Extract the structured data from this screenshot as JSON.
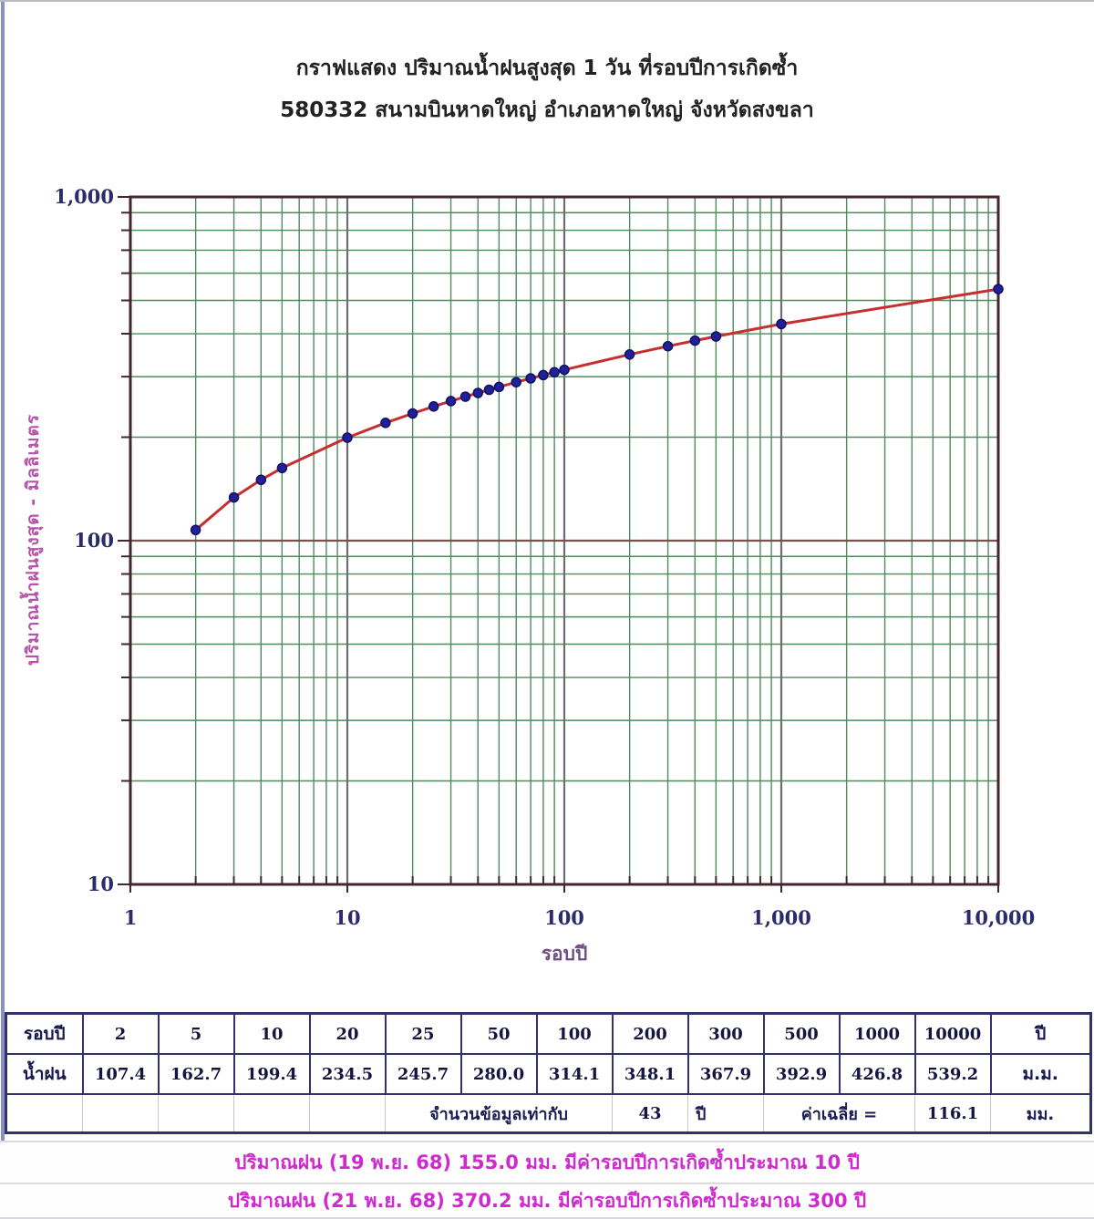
{
  "title": {
    "line1": "กราฟแสดง ปริมาณน้ำฝนสูงสุด 1 วัน ที่รอบปีการเกิดซ้ำ",
    "line2": "580332 สนามบินหาดใหญ่ อำเภอหาดใหญ่ จังหวัดสงขลา"
  },
  "chart_data": {
    "type": "line",
    "title": "กราฟแสดง ปริมาณน้ำฝนสูงสุด 1 วัน ที่รอบปีการเกิดซ้ำ",
    "subtitle": "580332 สนามบินหาดใหญ่ อำเภอหาดใหญ่ จังหวัดสงขลา",
    "xlabel": "รอบปี",
    "ylabel": "ปริมาณน้ำฝนสูงสุด - มิลลิเมตร",
    "x_scale": "log",
    "y_scale": "log",
    "xlim": [
      1,
      10000
    ],
    "ylim": [
      10,
      1000
    ],
    "grid": "log-log graph paper, minor lines green, major decade lines gray",
    "legend": "none",
    "x_ticks": [
      {
        "v": 1,
        "label": "1"
      },
      {
        "v": 10,
        "label": "10"
      },
      {
        "v": 100,
        "label": "100"
      },
      {
        "v": 1000,
        "label": "1,000"
      },
      {
        "v": 10000,
        "label": "10,000"
      }
    ],
    "y_ticks": [
      {
        "v": 10,
        "label": "10"
      },
      {
        "v": 100,
        "label": "100"
      },
      {
        "v": 1000,
        "label": "1,000"
      }
    ],
    "series": [
      {
        "name": "rainfall-frequency-curve",
        "line_color": "#c52f2f",
        "marker_color": "#20209a",
        "points": [
          [
            2,
            107.4
          ],
          [
            3,
            133.6
          ],
          [
            4,
            150.3
          ],
          [
            5,
            162.7
          ],
          [
            10,
            199.4
          ],
          [
            15,
            220.1
          ],
          [
            20,
            234.5
          ],
          [
            25,
            245.7
          ],
          [
            30,
            254.8
          ],
          [
            35,
            262.4
          ],
          [
            40,
            269.0
          ],
          [
            45,
            274.8
          ],
          [
            50,
            280.0
          ],
          [
            60,
            289.0
          ],
          [
            70,
            296.6
          ],
          [
            80,
            303.2
          ],
          [
            90,
            309.0
          ],
          [
            100,
            314.1
          ],
          [
            200,
            348.1
          ],
          [
            300,
            367.9
          ],
          [
            400,
            382.0
          ],
          [
            500,
            392.9
          ],
          [
            1000,
            426.8
          ],
          [
            10000,
            539.2
          ]
        ]
      }
    ]
  },
  "table": {
    "row1_header": "รอบปี",
    "row2_header": "น้ำฝน",
    "periods": [
      "2",
      "5",
      "10",
      "20",
      "25",
      "50",
      "100",
      "200",
      "300",
      "500",
      "1000",
      "10000"
    ],
    "period_unit": "ปี",
    "rainfall": [
      "107.4",
      "162.7",
      "199.4",
      "234.5",
      "245.7",
      "280.0",
      "314.1",
      "348.1",
      "367.9",
      "392.9",
      "426.8",
      "539.2"
    ],
    "rainfall_unit": "ม.ม.",
    "summary": {
      "label": "จำนวนข้อมูลเท่ากับ",
      "years_value": "43",
      "years_unit": "ปี",
      "mean_label": "ค่าเฉลี่ย =",
      "mean_value": "116.1",
      "mean_unit": "มม."
    }
  },
  "annotations": [
    {
      "text": "ปริมาณฝน (19 พ.ย. 68) 155.0 มม. มีค่ารอบปีการเกิดซ้ำประมาณ 10 ปี"
    },
    {
      "text": "ปริมาณฝน (21 พ.ย. 68) 370.2 มม. มีค่ารอบปีการเกิดซ้ำประมาณ 300 ปี"
    }
  ],
  "colors": {
    "grid_minor": "#4e8c5e",
    "grid_major": "#6e6e6e",
    "grid_major_h100": "#735252",
    "frame": "#43262e",
    "tick_label": "#2b2b6b",
    "curve": "#c52f2f",
    "marker_fill": "#20209a",
    "marker_stroke": "#11115e",
    "title_text": "#222222",
    "axis_title_x": "#6d4f85",
    "axis_title_y": "#b553a8",
    "table_border": "#31316e",
    "annotation_text": "#ce2ace"
  }
}
